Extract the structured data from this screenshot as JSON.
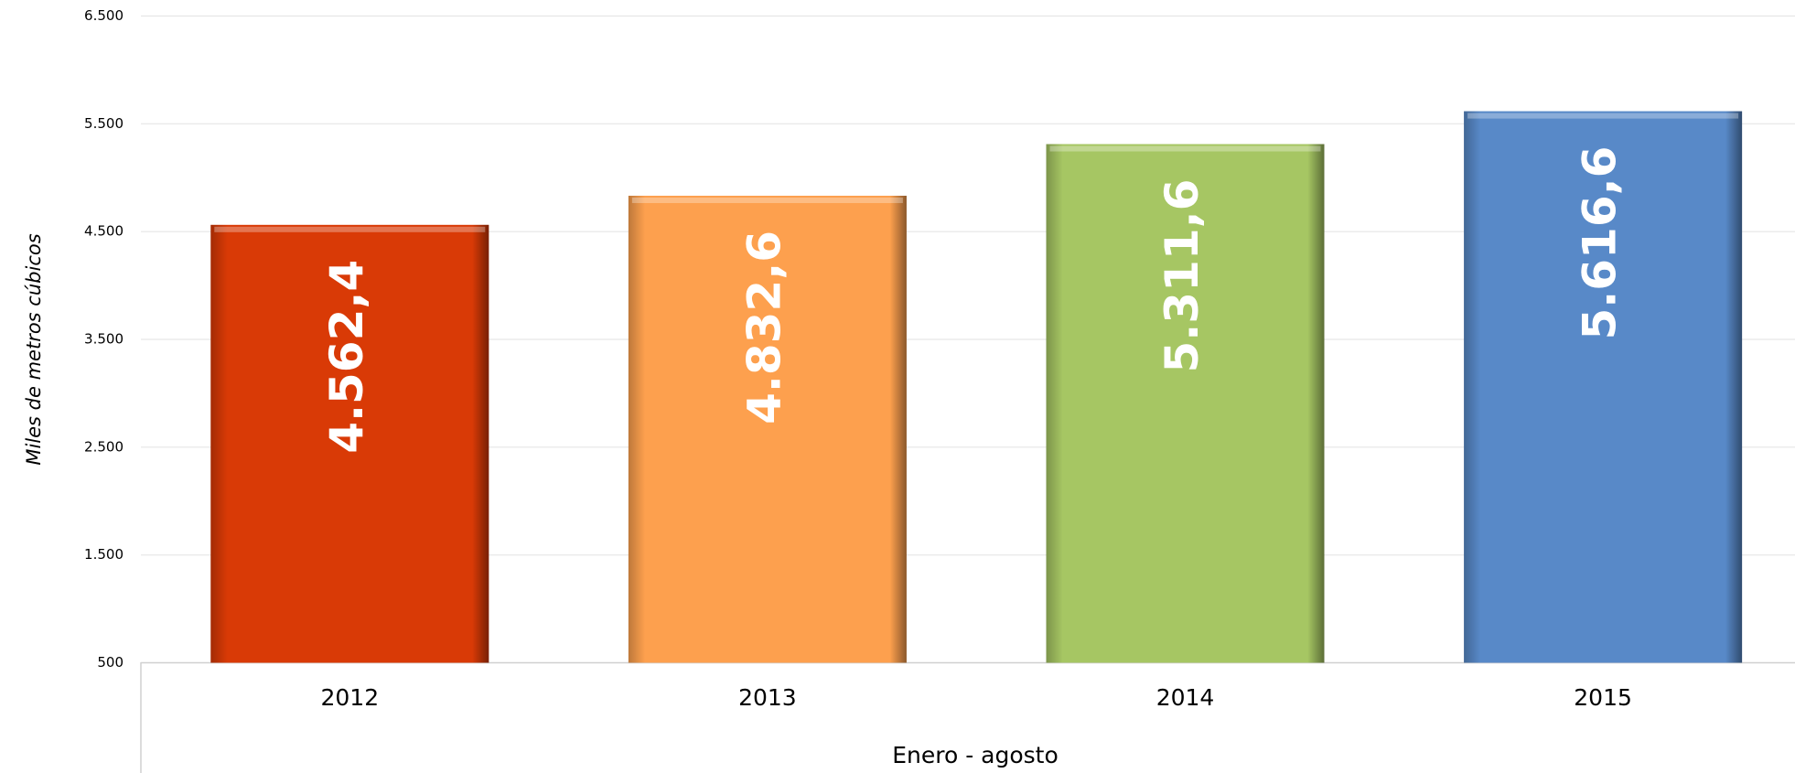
{
  "chart_data": {
    "type": "bar",
    "y_axis_label": "Miles de metros cúbicos",
    "x_axis_label": "Enero - agosto",
    "categories": [
      "2012",
      "2013",
      "2014",
      "2015"
    ],
    "values": [
      4562.4,
      4832.6,
      5311.6,
      5616.6
    ],
    "value_labels": [
      "4.562,4",
      "4.832,6",
      "5.311,6",
      "5.616,6"
    ],
    "colors": [
      "#d93a06",
      "#fda04e",
      "#a6c663",
      "#5889c8"
    ],
    "ylim": [
      500,
      6500
    ],
    "yticks": [
      {
        "value": 500,
        "label": "500"
      },
      {
        "value": 1500,
        "label": "1.500"
      },
      {
        "value": 2500,
        "label": "2.500"
      },
      {
        "value": 3500,
        "label": "3.500"
      },
      {
        "value": 4500,
        "label": "4.500"
      },
      {
        "value": 5500,
        "label": "5.500"
      },
      {
        "value": 6500,
        "label": "6.500"
      }
    ],
    "grid": true
  }
}
